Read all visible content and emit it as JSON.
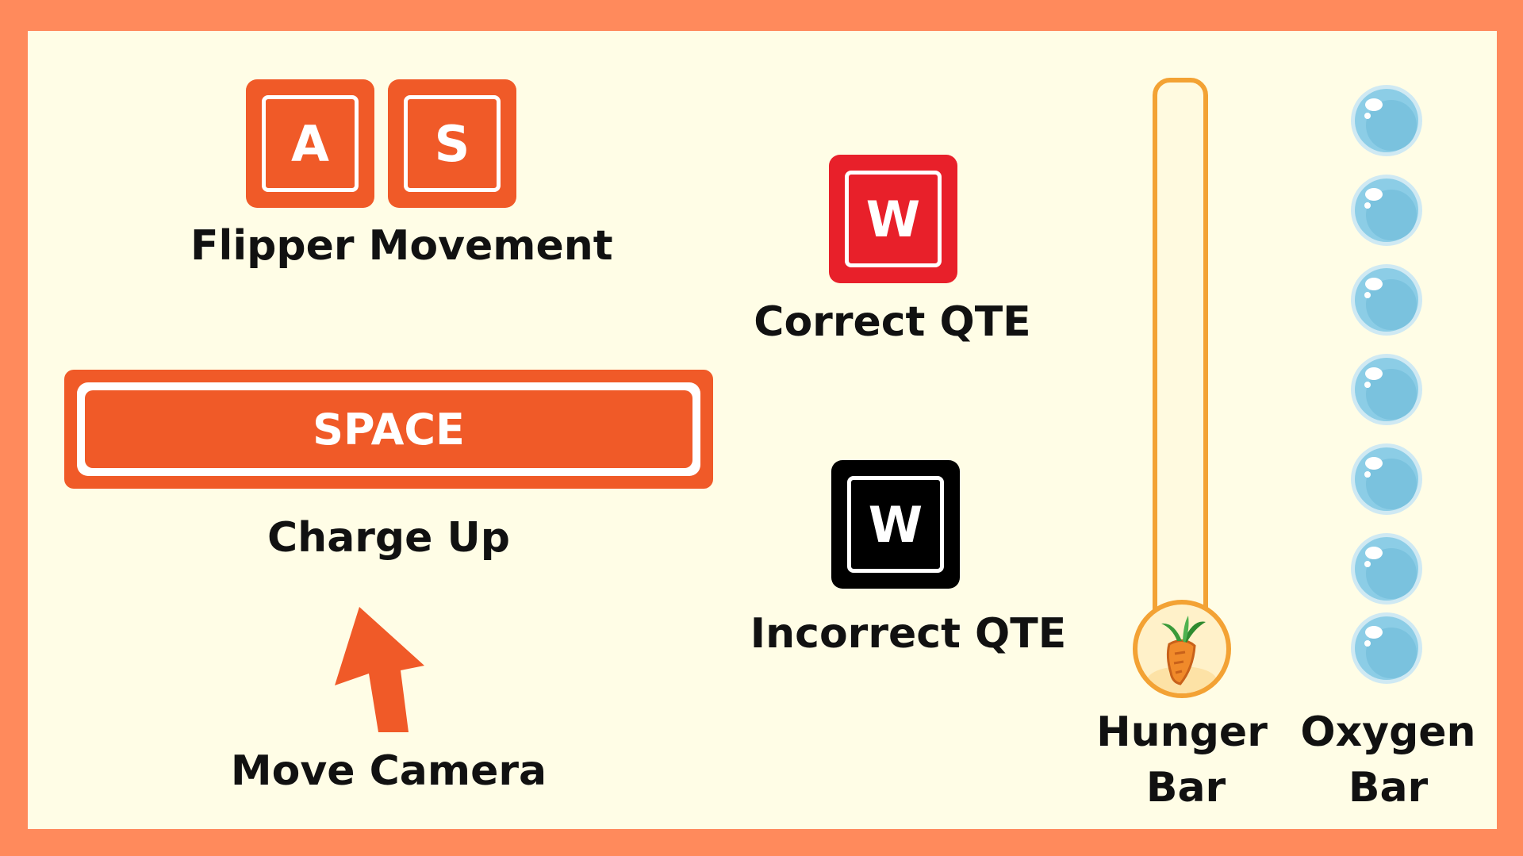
{
  "controls": {
    "key_a": "A",
    "key_s": "S",
    "flipper_label": "Flipper Movement",
    "space_key": "SPACE",
    "charge_label": "Charge Up",
    "camera_label": "Move Camera"
  },
  "qte": {
    "correct_key": "W",
    "correct_label": "Correct QTE",
    "incorrect_key": "W",
    "incorrect_label": "Incorrect QTE"
  },
  "bars": {
    "hunger_label_line1": "Hunger",
    "hunger_label_line2": "Bar",
    "oxygen_label_line1": "Oxygen",
    "oxygen_label_line2": "Bar",
    "oxygen_bubbles": 7
  },
  "colors": {
    "frame": "#ff8a5c",
    "background": "#fffde6",
    "key_orange": "#f05a28",
    "key_red": "#e8202a",
    "key_black": "#000000",
    "hunger_outline": "#f3a234",
    "bubble": "#8ccde6"
  },
  "icons": {
    "camera_arrow": "arrow-up-left-icon",
    "hunger": "carrot-icon",
    "oxygen": "bubble-icon"
  }
}
